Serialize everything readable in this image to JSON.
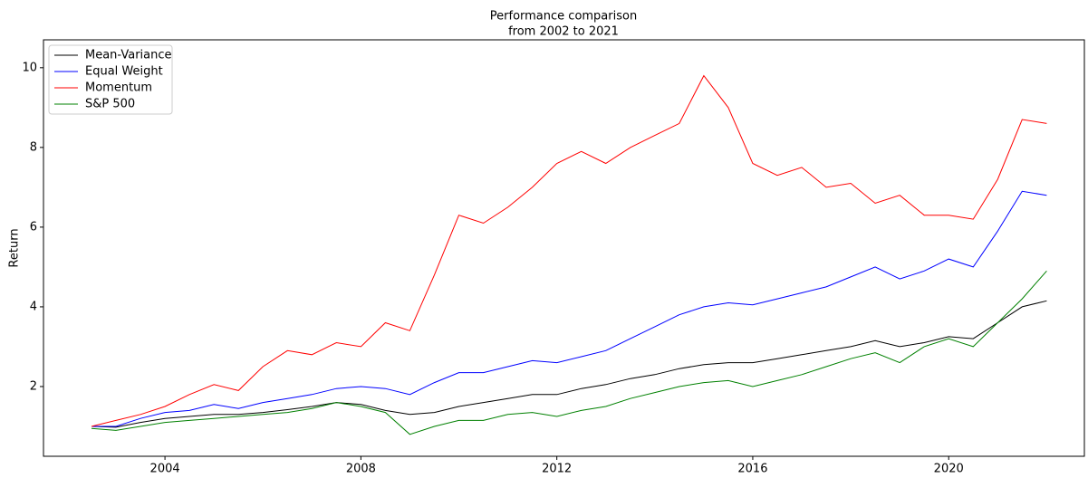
{
  "chart_data": {
    "type": "line",
    "title": "Performance comparison",
    "subtitle": "from 2002 to 2021",
    "y_label": "Return",
    "x": [
      2002.5,
      2003,
      2003.5,
      2004,
      2004.5,
      2005,
      2005.5,
      2006,
      2006.5,
      2007,
      2007.5,
      2008,
      2008.5,
      2009,
      2009.5,
      2010,
      2010.5,
      2011,
      2011.5,
      2012,
      2012.5,
      2013,
      2013.5,
      2014,
      2014.5,
      2015,
      2015.5,
      2016,
      2016.5,
      2017,
      2017.5,
      2018,
      2018.5,
      2019,
      2019.5,
      2020,
      2020.5,
      2021,
      2021.5,
      2022
    ],
    "series": [
      {
        "name": "Mean-Variance",
        "color": "#000000",
        "values": [
          1.0,
          0.98,
          1.1,
          1.2,
          1.25,
          1.3,
          1.3,
          1.35,
          1.42,
          1.5,
          1.6,
          1.55,
          1.4,
          1.3,
          1.35,
          1.5,
          1.6,
          1.7,
          1.8,
          1.8,
          1.95,
          2.05,
          2.2,
          2.3,
          2.45,
          2.55,
          2.6,
          2.6,
          2.7,
          2.8,
          2.9,
          3.0,
          3.15,
          3.0,
          3.1,
          3.25,
          3.2,
          3.6,
          4.0,
          4.15
        ]
      },
      {
        "name": "Equal Weight",
        "color": "#0000ff",
        "values": [
          1.0,
          1.0,
          1.2,
          1.35,
          1.4,
          1.55,
          1.45,
          1.6,
          1.7,
          1.8,
          1.95,
          2.0,
          1.95,
          1.8,
          2.1,
          2.35,
          2.35,
          2.5,
          2.65,
          2.6,
          2.75,
          2.9,
          3.2,
          3.5,
          3.8,
          4.0,
          4.1,
          4.05,
          4.2,
          4.35,
          4.5,
          4.75,
          5.0,
          4.7,
          4.9,
          5.2,
          5.0,
          5.9,
          6.9,
          6.8
        ]
      },
      {
        "name": "Momentum",
        "color": "#ff0000",
        "values": [
          1.0,
          1.15,
          1.3,
          1.5,
          1.8,
          2.05,
          1.9,
          2.5,
          2.9,
          2.8,
          3.1,
          3.0,
          3.6,
          3.4,
          4.8,
          6.3,
          6.1,
          6.5,
          7.0,
          7.6,
          7.9,
          7.6,
          8.0,
          8.3,
          8.6,
          9.8,
          9.0,
          7.6,
          7.3,
          7.5,
          7.0,
          7.1,
          6.6,
          6.8,
          6.3,
          6.3,
          6.2,
          7.2,
          8.7,
          8.6
        ]
      },
      {
        "name": "S&P 500",
        "color": "#008000",
        "values": [
          0.95,
          0.9,
          1.0,
          1.1,
          1.15,
          1.2,
          1.25,
          1.3,
          1.35,
          1.45,
          1.6,
          1.5,
          1.35,
          0.8,
          1.0,
          1.15,
          1.15,
          1.3,
          1.35,
          1.25,
          1.4,
          1.5,
          1.7,
          1.85,
          2.0,
          2.1,
          2.15,
          2.0,
          2.15,
          2.3,
          2.5,
          2.7,
          2.85,
          2.6,
          3.0,
          3.2,
          3.0,
          3.6,
          4.2,
          4.9
        ]
      }
    ],
    "xlim": [
      2001.52,
      2022.77
    ],
    "xticks": [
      2004,
      2008,
      2012,
      2016,
      2020
    ],
    "ylim": [
      0.25,
      10.7
    ],
    "yticks": [
      2,
      4,
      6,
      8,
      10
    ],
    "grid": false,
    "legend": "upper left"
  }
}
